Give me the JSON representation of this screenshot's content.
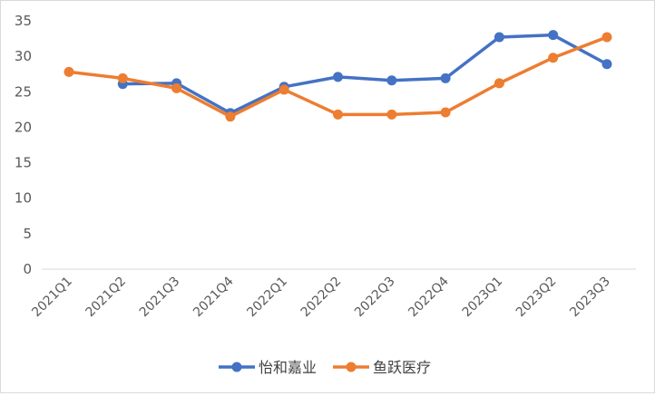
{
  "chart_data": {
    "type": "line",
    "title": "",
    "xlabel": "",
    "ylabel": "",
    "categories": [
      "2021Q1",
      "2021Q2",
      "2021Q3",
      "2021Q4",
      "2022Q1",
      "2022Q2",
      "2022Q3",
      "2022Q4",
      "2023Q1",
      "2023Q2",
      "2023Q3"
    ],
    "ylim": [
      0,
      35
    ],
    "yticks": [
      "0",
      "5",
      "10",
      "15",
      "20",
      "25",
      "30",
      "35"
    ],
    "grid": false,
    "legend_position": "bottom",
    "series": [
      {
        "name": "怡和嘉业",
        "color": "#4472C4",
        "values": [
          null,
          26.1,
          26.2,
          22.0,
          25.7,
          27.1,
          26.6,
          26.9,
          32.7,
          33.0,
          28.9
        ]
      },
      {
        "name": "鱼跃医疗",
        "color": "#ED7D31",
        "values": [
          27.8,
          26.9,
          25.5,
          21.5,
          25.3,
          21.8,
          21.8,
          22.1,
          26.2,
          29.8,
          32.7
        ]
      }
    ]
  }
}
